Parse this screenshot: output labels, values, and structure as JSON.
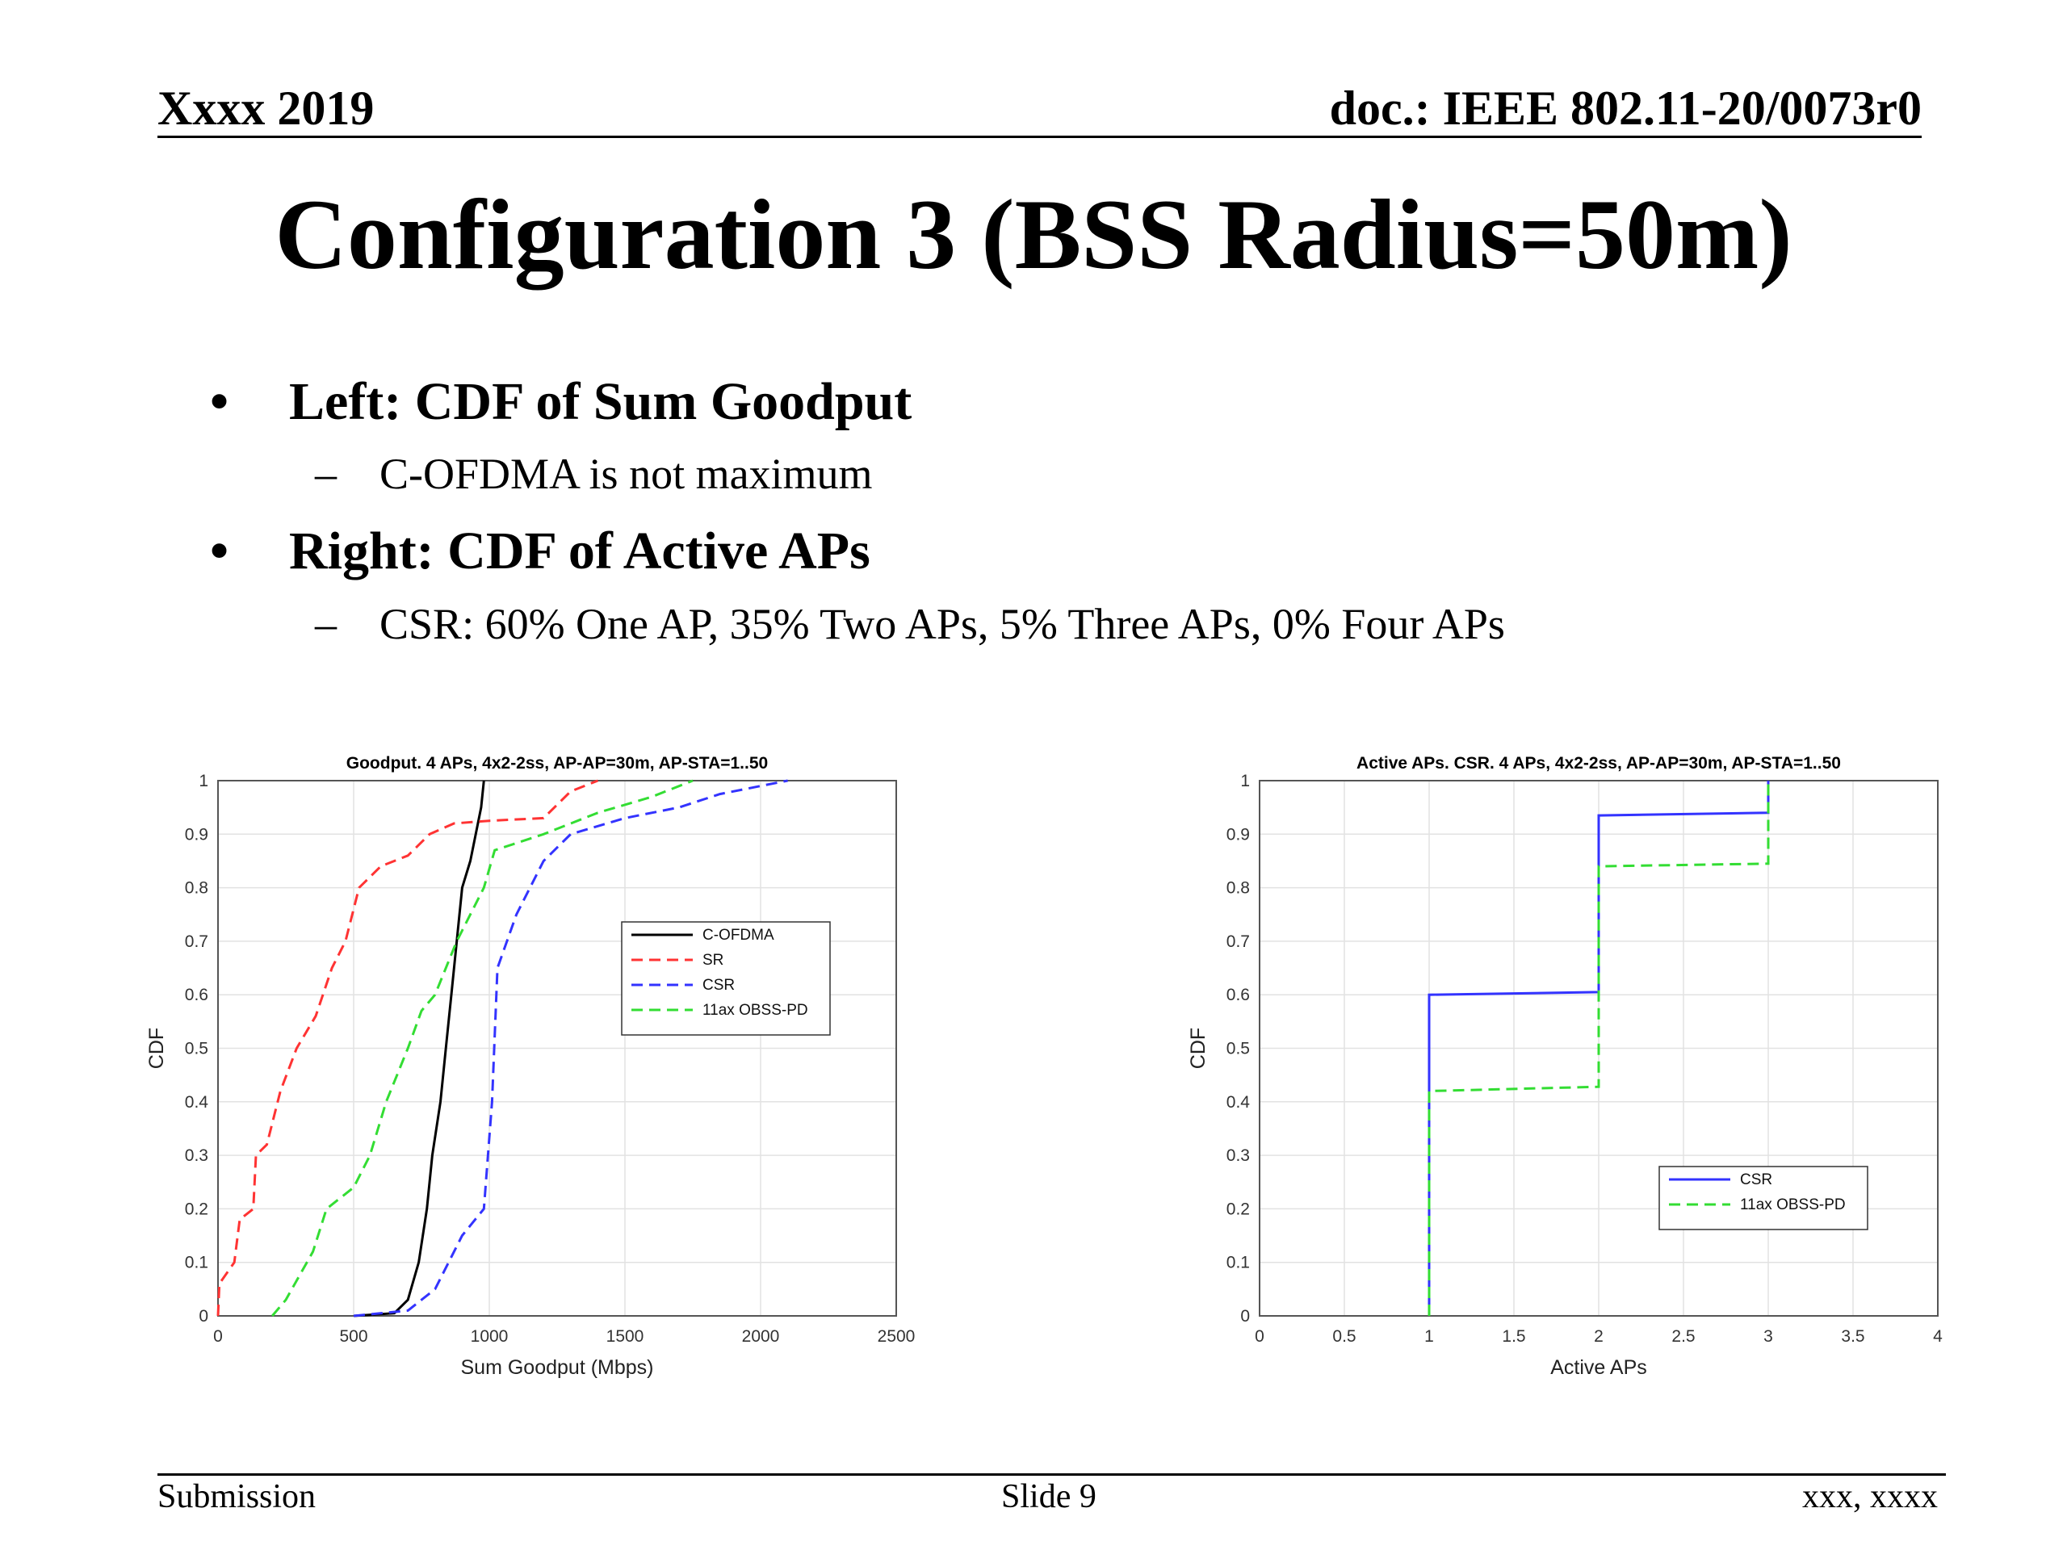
{
  "header": {
    "left": "Xxxx 2019",
    "right": "doc.: IEEE 802.11-20/0073r0"
  },
  "title": "Configuration 3 (BSS Radius=50m)",
  "bullets": [
    {
      "text": "Left: CDF of Sum Goodput",
      "sub": "C-OFDMA is not maximum"
    },
    {
      "text": "Right: CDF of Active APs",
      "sub": "CSR: 60% One AP, 35% Two APs, 5% Three APs, 0% Four APs"
    }
  ],
  "footer": {
    "left": "Submission",
    "center": "Slide 9",
    "right": "xxx, xxxx"
  },
  "chart_data": [
    {
      "type": "line",
      "title": "Goodput. 4 APs, 4x2-2ss, AP-AP=30m, AP-STA=1..50",
      "xlabel": "Sum Goodput (Mbps)",
      "ylabel": "CDF",
      "xlim": [
        0,
        2500
      ],
      "ylim": [
        0,
        1
      ],
      "xticks": [
        0,
        500,
        1000,
        1500,
        2000,
        2500
      ],
      "yticks": [
        0,
        0.1,
        0.2,
        0.3,
        0.4,
        0.5,
        0.6,
        0.7,
        0.8,
        0.9,
        1
      ],
      "grid": true,
      "legend_position": "right-middle",
      "series": [
        {
          "name": "C-OFDMA",
          "color": "#000000",
          "dash": false,
          "points": [
            [
              500,
              0
            ],
            [
              650,
              0.005
            ],
            [
              700,
              0.03
            ],
            [
              740,
              0.1
            ],
            [
              770,
              0.2
            ],
            [
              790,
              0.3
            ],
            [
              820,
              0.4
            ],
            [
              840,
              0.5
            ],
            [
              860,
              0.6
            ],
            [
              880,
              0.7
            ],
            [
              900,
              0.8
            ],
            [
              930,
              0.85
            ],
            [
              950,
              0.9
            ],
            [
              970,
              0.95
            ],
            [
              980,
              1.0
            ]
          ]
        },
        {
          "name": "SR",
          "color": "#ff3333",
          "dash": true,
          "points": [
            [
              0,
              0
            ],
            [
              5,
              0.06
            ],
            [
              60,
              0.1
            ],
            [
              80,
              0.18
            ],
            [
              130,
              0.2
            ],
            [
              140,
              0.3
            ],
            [
              180,
              0.32
            ],
            [
              230,
              0.42
            ],
            [
              290,
              0.5
            ],
            [
              360,
              0.56
            ],
            [
              420,
              0.65
            ],
            [
              470,
              0.7
            ],
            [
              520,
              0.8
            ],
            [
              600,
              0.84
            ],
            [
              700,
              0.86
            ],
            [
              780,
              0.9
            ],
            [
              870,
              0.92
            ],
            [
              1000,
              0.925
            ],
            [
              1200,
              0.93
            ],
            [
              1300,
              0.98
            ],
            [
              1400,
              1.0
            ]
          ]
        },
        {
          "name": "CSR",
          "color": "#3333ff",
          "dash": true,
          "points": [
            [
              500,
              0
            ],
            [
              700,
              0.01
            ],
            [
              800,
              0.05
            ],
            [
              850,
              0.1
            ],
            [
              900,
              0.15
            ],
            [
              980,
              0.2
            ],
            [
              1010,
              0.4
            ],
            [
              1030,
              0.65
            ],
            [
              1100,
              0.75
            ],
            [
              1200,
              0.85
            ],
            [
              1300,
              0.9
            ],
            [
              1500,
              0.93
            ],
            [
              1700,
              0.95
            ],
            [
              1850,
              0.975
            ],
            [
              2000,
              0.99
            ],
            [
              2100,
              1.0
            ]
          ]
        },
        {
          "name": "11ax OBSS-PD",
          "color": "#33dd33",
          "dash": true,
          "points": [
            [
              200,
              0
            ],
            [
              250,
              0.03
            ],
            [
              350,
              0.12
            ],
            [
              400,
              0.2
            ],
            [
              500,
              0.24
            ],
            [
              560,
              0.3
            ],
            [
              620,
              0.4
            ],
            [
              700,
              0.5
            ],
            [
              750,
              0.57
            ],
            [
              800,
              0.6
            ],
            [
              880,
              0.7
            ],
            [
              980,
              0.8
            ],
            [
              1020,
              0.87
            ],
            [
              1200,
              0.9
            ],
            [
              1400,
              0.94
            ],
            [
              1600,
              0.97
            ],
            [
              1750,
              1.0
            ]
          ]
        }
      ]
    },
    {
      "type": "line",
      "title": "Active APs. CSR. 4 APs, 4x2-2ss, AP-AP=30m, AP-STA=1..50",
      "xlabel": "Active APs",
      "ylabel": "CDF",
      "xlim": [
        0,
        4
      ],
      "ylim": [
        0,
        1
      ],
      "xticks": [
        0,
        0.5,
        1,
        1.5,
        2,
        2.5,
        3,
        3.5,
        4
      ],
      "yticks": [
        0,
        0.1,
        0.2,
        0.3,
        0.4,
        0.5,
        0.6,
        0.7,
        0.8,
        0.9,
        1
      ],
      "grid": true,
      "legend_position": "bottom-right",
      "series": [
        {
          "name": "CSR",
          "color": "#3333ff",
          "dash": false,
          "points": [
            [
              1,
              0
            ],
            [
              1,
              0.6
            ],
            [
              2,
              0.605
            ],
            [
              2,
              0.935
            ],
            [
              3,
              0.94
            ],
            [
              3,
              1.0
            ]
          ]
        },
        {
          "name": "11ax OBSS-PD",
          "color": "#33dd33",
          "dash": true,
          "points": [
            [
              1,
              0
            ],
            [
              1,
              0.42
            ],
            [
              2,
              0.428
            ],
            [
              2,
              0.84
            ],
            [
              3,
              0.845
            ],
            [
              3,
              1.0
            ]
          ]
        }
      ]
    }
  ]
}
